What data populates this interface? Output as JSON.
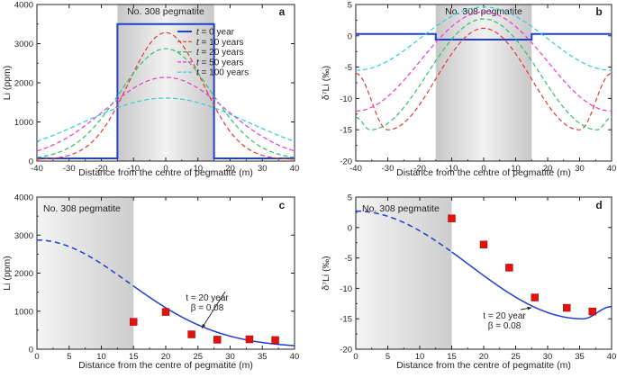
{
  "chart_data": [
    {
      "panel": "a",
      "type": "line",
      "region_label": "No. 308 pegmatite",
      "region": [
        -15,
        15
      ],
      "xlabel": "Distance from the centre of pegmatite (m)",
      "ylabel": "Li (ppm)",
      "xlim": [
        -40,
        40
      ],
      "ylim": [
        0,
        4000
      ],
      "xticks": [
        "-40",
        "-30",
        "-20",
        "-10",
        "0",
        "10",
        "20",
        "30",
        "40"
      ],
      "yticks": [
        "0",
        "1000",
        "2000",
        "3000",
        "4000"
      ],
      "legend_prefix": "t",
      "series": [
        {
          "name": "= 0 year",
          "color": "#1f3fd1",
          "values_desc": "step",
          "inside": 3500,
          "outside": 70
        },
        {
          "name": "= 10 years",
          "color": "#e03a2f",
          "peak": 3280,
          "sigma": 11.5
        },
        {
          "name": "= 20 years",
          "color": "#2fbf6b",
          "peak": 2870,
          "sigma": 14.2
        },
        {
          "name": "= 50 years",
          "color": "#e83bd6",
          "peak": 2140,
          "sigma": 18.8
        },
        {
          "name": "= 100 years",
          "color": "#2fcfd3",
          "peak": 1610,
          "sigma": 25.6
        }
      ]
    },
    {
      "panel": "b",
      "type": "line",
      "region_label": "No. 308 pegmatite",
      "region": [
        -15,
        15
      ],
      "xlabel": "Distance from the centre of pegmatite (m)",
      "ylabel": "δ⁷Li (‰)",
      "xlim": [
        -40,
        40
      ],
      "ylim": [
        -20,
        5
      ],
      "xticks": [
        "-40",
        "-30",
        "-20",
        "-10",
        "0",
        "10",
        "20",
        "30",
        "40"
      ],
      "yticks": [
        "-20",
        "-15",
        "-10",
        "-5",
        "0",
        "5"
      ],
      "series": [
        {
          "name": "t = 0 year",
          "color": "#1f3fd1",
          "inside": -0.6,
          "outside": 0.3
        },
        {
          "name": "t = 10 years",
          "color": "#e03a2f",
          "center": 1.2,
          "min": -15,
          "min_at": 30,
          "edge": -6
        },
        {
          "name": "t = 20 years",
          "color": "#2fbf6b",
          "center": 2.7,
          "min": -15,
          "min_at": 35.5,
          "edge": -13
        },
        {
          "name": "t = 50 years",
          "color": "#e83bd6",
          "center": 3.8,
          "min": -12,
          "min_at": 40,
          "edge": -12
        },
        {
          "name": "t = 100 years",
          "color": "#2fcfd3",
          "center": 4.6,
          "min": -5.5,
          "min_at": 40,
          "edge": -5.5
        }
      ]
    },
    {
      "panel": "c",
      "type": "line+scatter",
      "region_label": "No. 308 pegmatite",
      "region": [
        0,
        15
      ],
      "xlabel": "Distance from the centre of pegmatite (m)",
      "ylabel": "Li (ppm)",
      "xlim": [
        0,
        40
      ],
      "ylim": [
        0,
        4000
      ],
      "xticks": [
        "0",
        "5",
        "10",
        "15",
        "20",
        "25",
        "30",
        "35",
        "40"
      ],
      "yticks": [
        "0",
        "1000",
        "2000",
        "3000",
        "4000"
      ],
      "model": {
        "peak": 2870,
        "sigma": 14.2,
        "dashed_until": 15
      },
      "annotation_line1": "t = 20 year",
      "annotation_line2": "β = 0.08",
      "points": [
        {
          "x": 15,
          "y": 720
        },
        {
          "x": 20,
          "y": 980
        },
        {
          "x": 24,
          "y": 390
        },
        {
          "x": 28,
          "y": 250
        },
        {
          "x": 33,
          "y": 260
        },
        {
          "x": 37,
          "y": 240
        }
      ]
    },
    {
      "panel": "d",
      "type": "line+scatter",
      "region_label": "No. 308 pegmatite",
      "region": [
        0,
        15
      ],
      "xlabel": "Distance from the centre of pegmatite (m)",
      "ylabel": "δ⁷Li (‰)",
      "xlim": [
        0,
        40
      ],
      "ylim": [
        -20,
        5
      ],
      "xticks": [
        "0",
        "5",
        "10",
        "15",
        "20",
        "25",
        "30",
        "35",
        "40"
      ],
      "yticks": [
        "-20",
        "-15",
        "-10",
        "-5",
        "0",
        "5"
      ],
      "model": {
        "center": 2.7,
        "min": -15,
        "min_at": 35.5,
        "edge": -13,
        "dashed_until": 15
      },
      "annotation_line1": "t = 20 year",
      "annotation_line2": "β = 0.08",
      "points": [
        {
          "x": 15,
          "y": 1.5
        },
        {
          "x": 20,
          "y": -2.8
        },
        {
          "x": 24,
          "y": -6.6
        },
        {
          "x": 28,
          "y": -11.5
        },
        {
          "x": 33,
          "y": -13.2
        },
        {
          "x": 37,
          "y": -13.8
        }
      ]
    }
  ],
  "colors": {
    "shade_dark": "#c8c8c8",
    "shade_light": "#f2f2f2",
    "model_line": "#1f3fd1",
    "marker": "#e3120b"
  }
}
